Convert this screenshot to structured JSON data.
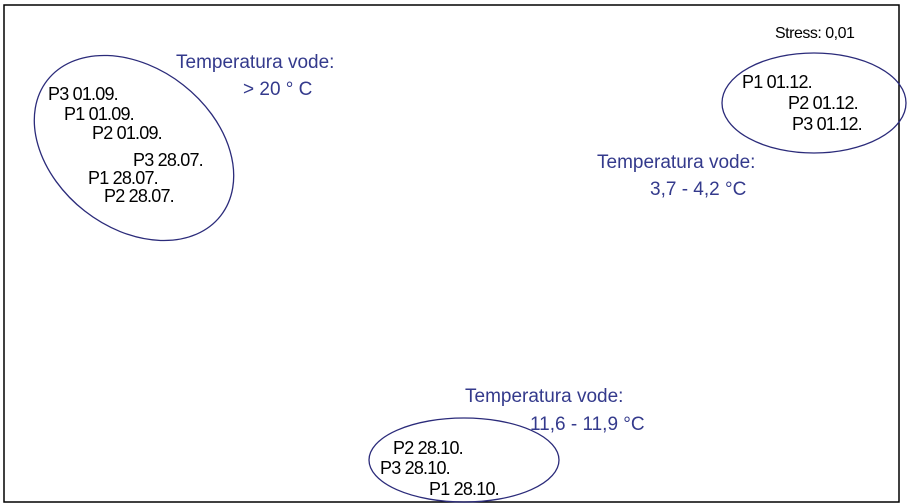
{
  "stress": "Stress: 0,01",
  "groups": [
    {
      "title": "Temperatura vode:",
      "range": "> 20 ° C",
      "samples": [
        "P3 01.09.",
        "P1 01.09.",
        "P2 01.09.",
        "P3 28.07.",
        "P1 28.07.",
        "P2 28.07."
      ]
    },
    {
      "title": "Temperatura vode:",
      "range": "3,7 - 4,2 °C",
      "samples": [
        "P1 01.12.",
        "P2 01.12.",
        "P3 01.12."
      ]
    },
    {
      "title": "Temperatura vode:",
      "range": "11,6 - 11,9 °C",
      "samples": [
        "P2 28.10.",
        "P3 28.10.",
        "P1 28.10."
      ]
    }
  ]
}
